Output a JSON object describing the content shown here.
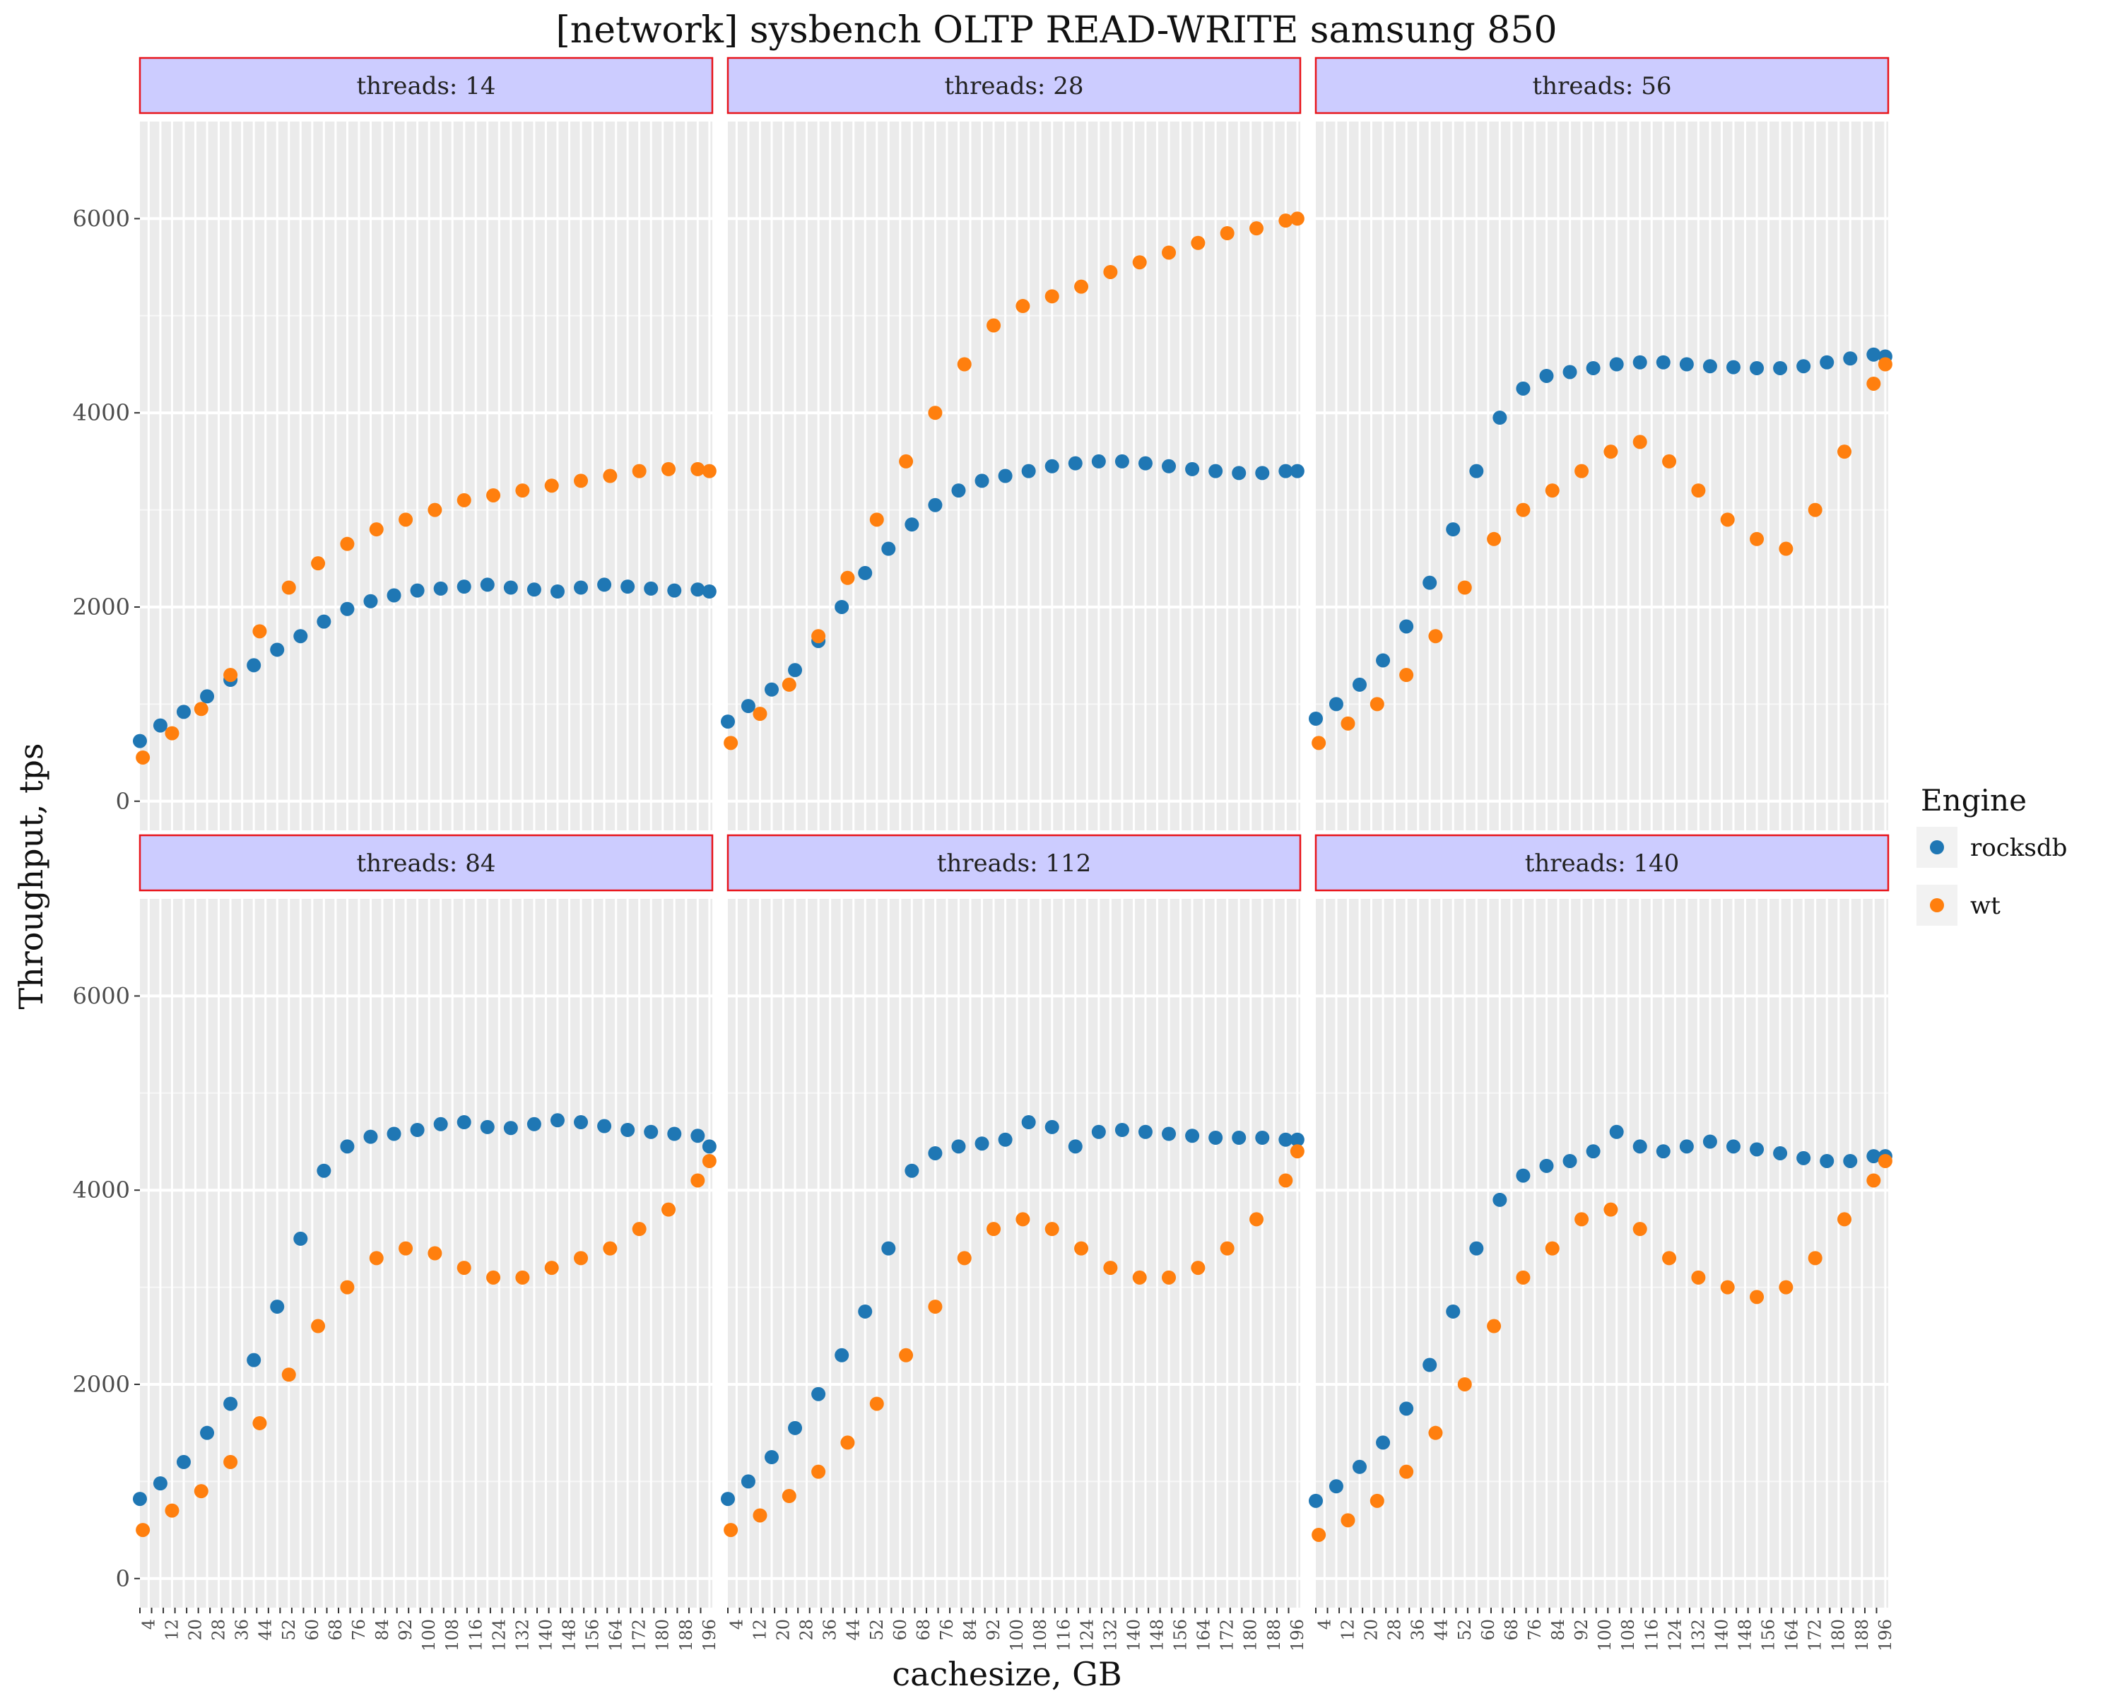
{
  "chart_data": {
    "type": "scatter",
    "title": "[network] sysbench OLTP READ-WRITE samsung 850",
    "xlabel": "cachesize, GB",
    "ylabel": "Throughput, tps",
    "x_ticks": [
      4,
      12,
      20,
      28,
      36,
      44,
      52,
      60,
      68,
      76,
      84,
      92,
      100,
      108,
      116,
      124,
      132,
      140,
      148,
      156,
      164,
      172,
      180,
      188,
      196
    ],
    "xlim": [
      1,
      197
    ],
    "y_ticks": [
      0,
      2000,
      4000,
      6000
    ],
    "ylim": [
      -300,
      7000
    ],
    "grid": true,
    "legend": {
      "title": "Engine",
      "position": "right",
      "entries": [
        {
          "name": "rocksdb",
          "color": "#1f77b4"
        },
        {
          "name": "wt",
          "color": "#ff7f0e"
        }
      ]
    },
    "facets": [
      {
        "label": "threads: 14",
        "series": [
          {
            "name": "rocksdb",
            "x": [
              1,
              8,
              16,
              24,
              32,
              40,
              48,
              56,
              64,
              72,
              80,
              88,
              96,
              104,
              112,
              120,
              128,
              136,
              144,
              152,
              160,
              168,
              176,
              184,
              192,
              196
            ],
            "y": [
              620,
              780,
              920,
              1080,
              1250,
              1400,
              1560,
              1700,
              1850,
              1980,
              2060,
              2120,
              2170,
              2190,
              2210,
              2230,
              2200,
              2180,
              2160,
              2200,
              2230,
              2210,
              2190,
              2170,
              2180,
              2160
            ]
          },
          {
            "name": "wt",
            "x": [
              2,
              12,
              22,
              32,
              42,
              52,
              62,
              72,
              82,
              92,
              102,
              112,
              122,
              132,
              142,
              152,
              162,
              172,
              182,
              192,
              196
            ],
            "y": [
              450,
              700,
              950,
              1300,
              1750,
              2200,
              2450,
              2650,
              2800,
              2900,
              3000,
              3100,
              3150,
              3200,
              3250,
              3300,
              3350,
              3400,
              3420,
              3420,
              3400
            ]
          }
        ]
      },
      {
        "label": "threads: 28",
        "series": [
          {
            "name": "rocksdb",
            "x": [
              1,
              8,
              16,
              24,
              32,
              40,
              48,
              56,
              64,
              72,
              80,
              88,
              96,
              104,
              112,
              120,
              128,
              136,
              144,
              152,
              160,
              168,
              176,
              184,
              192,
              196
            ],
            "y": [
              820,
              980,
              1150,
              1350,
              1650,
              2000,
              2350,
              2600,
              2850,
              3050,
              3200,
              3300,
              3350,
              3400,
              3450,
              3480,
              3500,
              3500,
              3480,
              3450,
              3420,
              3400,
              3380,
              3380,
              3400,
              3400
            ]
          },
          {
            "name": "wt",
            "x": [
              2,
              12,
              22,
              32,
              42,
              52,
              62,
              72,
              82,
              92,
              102,
              112,
              122,
              132,
              142,
              152,
              162,
              172,
              182,
              192,
              196
            ],
            "y": [
              600,
              900,
              1200,
              1700,
              2300,
              2900,
              3500,
              4000,
              4500,
              4900,
              5100,
              5200,
              5300,
              5450,
              5550,
              5650,
              5750,
              5850,
              5900,
              5980,
              6000
            ]
          }
        ]
      },
      {
        "label": "threads: 56",
        "series": [
          {
            "name": "rocksdb",
            "x": [
              1,
              8,
              16,
              24,
              32,
              40,
              48,
              56,
              64,
              72,
              80,
              88,
              96,
              104,
              112,
              120,
              128,
              136,
              144,
              152,
              160,
              168,
              176,
              184,
              192,
              196
            ],
            "y": [
              850,
              1000,
              1200,
              1450,
              1800,
              2250,
              2800,
              3400,
              3950,
              4250,
              4380,
              4420,
              4460,
              4500,
              4520,
              4520,
              4500,
              4480,
              4470,
              4460,
              4460,
              4480,
              4520,
              4560,
              4600,
              4580
            ]
          },
          {
            "name": "wt",
            "x": [
              2,
              12,
              22,
              32,
              42,
              52,
              62,
              72,
              82,
              92,
              102,
              112,
              122,
              132,
              142,
              152,
              162,
              172,
              182,
              192,
              196
            ],
            "y": [
              600,
              800,
              1000,
              1300,
              1700,
              2200,
              2700,
              3000,
              3200,
              3400,
              3600,
              3700,
              3500,
              3200,
              2900,
              2700,
              2600,
              3000,
              3600,
              4300,
              4500
            ]
          }
        ]
      },
      {
        "label": "threads: 84",
        "series": [
          {
            "name": "rocksdb",
            "x": [
              1,
              8,
              16,
              24,
              32,
              40,
              48,
              56,
              64,
              72,
              80,
              88,
              96,
              104,
              112,
              120,
              128,
              136,
              144,
              152,
              160,
              168,
              176,
              184,
              192,
              196
            ],
            "y": [
              820,
              980,
              1200,
              1500,
              1800,
              2250,
              2800,
              3500,
              4200,
              4450,
              4550,
              4580,
              4620,
              4680,
              4700,
              4650,
              4640,
              4680,
              4720,
              4700,
              4660,
              4620,
              4600,
              4580,
              4560,
              4450
            ]
          },
          {
            "name": "wt",
            "x": [
              2,
              12,
              22,
              32,
              42,
              52,
              62,
              72,
              82,
              92,
              102,
              112,
              122,
              132,
              142,
              152,
              162,
              172,
              182,
              192,
              196
            ],
            "y": [
              500,
              700,
              900,
              1200,
              1600,
              2100,
              2600,
              3000,
              3300,
              3400,
              3350,
              3200,
              3100,
              3100,
              3200,
              3300,
              3400,
              3600,
              3800,
              4100,
              4300
            ]
          }
        ]
      },
      {
        "label": "threads: 112",
        "series": [
          {
            "name": "rocksdb",
            "x": [
              1,
              8,
              16,
              24,
              32,
              40,
              48,
              56,
              64,
              72,
              80,
              88,
              96,
              104,
              112,
              120,
              128,
              136,
              144,
              152,
              160,
              168,
              176,
              184,
              192,
              196
            ],
            "y": [
              820,
              1000,
              1250,
              1550,
              1900,
              2300,
              2750,
              3400,
              4200,
              4380,
              4450,
              4480,
              4520,
              4700,
              4650,
              4450,
              4600,
              4620,
              4600,
              4580,
              4560,
              4540,
              4540,
              4540,
              4520,
              4520
            ]
          },
          {
            "name": "wt",
            "x": [
              2,
              12,
              22,
              32,
              42,
              52,
              62,
              72,
              82,
              92,
              102,
              112,
              122,
              132,
              142,
              152,
              162,
              172,
              182,
              192,
              196
            ],
            "y": [
              500,
              650,
              850,
              1100,
              1400,
              1800,
              2300,
              2800,
              3300,
              3600,
              3700,
              3600,
              3400,
              3200,
              3100,
              3100,
              3200,
              3400,
              3700,
              4100,
              4400
            ]
          }
        ]
      },
      {
        "label": "threads: 140",
        "series": [
          {
            "name": "rocksdb",
            "x": [
              1,
              8,
              16,
              24,
              32,
              40,
              48,
              56,
              64,
              72,
              80,
              88,
              96,
              104,
              112,
              120,
              128,
              136,
              144,
              152,
              160,
              168,
              176,
              184,
              192,
              196
            ],
            "y": [
              800,
              950,
              1150,
              1400,
              1750,
              2200,
              2750,
              3400,
              3900,
              4150,
              4250,
              4300,
              4400,
              4600,
              4450,
              4400,
              4450,
              4500,
              4450,
              4420,
              4380,
              4330,
              4300,
              4300,
              4350,
              4350
            ]
          },
          {
            "name": "wt",
            "x": [
              2,
              12,
              22,
              32,
              42,
              52,
              62,
              72,
              82,
              92,
              102,
              112,
              122,
              132,
              142,
              152,
              162,
              172,
              182,
              192,
              196
            ],
            "y": [
              450,
              600,
              800,
              1100,
              1500,
              2000,
              2600,
              3100,
              3400,
              3700,
              3800,
              3600,
              3300,
              3100,
              3000,
              2900,
              3000,
              3300,
              3700,
              4100,
              4300
            ]
          }
        ]
      }
    ]
  }
}
